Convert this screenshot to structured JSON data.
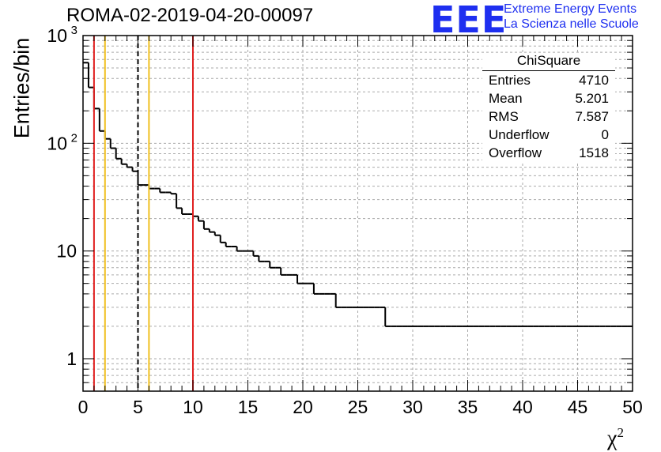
{
  "header": {
    "title": "ROMA-02-2019-04-20-00097",
    "logo_text": "EEE",
    "logo_line1": "Extreme Energy Events",
    "logo_line2": "La Scienza nelle Scuole"
  },
  "stats_box": {
    "title": "ChiSquare",
    "rows": [
      {
        "label": "Entries",
        "value": "4710"
      },
      {
        "label": "Mean",
        "value": "5.201"
      },
      {
        "label": "RMS",
        "value": "7.587"
      },
      {
        "label": "Underflow",
        "value": "0"
      },
      {
        "label": "Overflow",
        "value": "1518"
      }
    ]
  },
  "chart_data": {
    "type": "bar",
    "style": "step-histogram",
    "title": "ROMA-02-2019-04-20-00097",
    "xlabel": "χ",
    "xlabel_superscript": "2",
    "ylabel": "Entries/bin",
    "xlim": [
      0,
      50
    ],
    "ylim": [
      0.5,
      1000
    ],
    "yscale": "log",
    "grid": true,
    "bin_width": 0.5,
    "x_ticks": [
      "0",
      "5",
      "10",
      "15",
      "20",
      "25",
      "30",
      "35",
      "40",
      "45",
      "50"
    ],
    "y_ticks": [
      {
        "value": 1,
        "label": "1"
      },
      {
        "value": 10,
        "label": "10"
      },
      {
        "value": 100,
        "label": "10",
        "exponent": "2"
      },
      {
        "value": 1000,
        "label": "10",
        "exponent": "3"
      }
    ],
    "values": [
      560,
      330,
      210,
      130,
      110,
      90,
      72,
      64,
      60,
      55,
      41,
      41,
      38,
      38,
      35,
      35,
      34,
      25,
      22,
      22,
      21,
      19,
      16,
      15,
      14,
      12,
      11,
      11,
      10,
      10,
      10,
      9,
      8,
      8,
      7,
      7,
      6,
      6,
      6,
      5,
      5,
      5,
      4,
      4,
      4,
      4,
      3,
      3,
      3,
      3,
      3,
      3,
      3,
      3,
      3,
      2,
      2,
      2,
      2,
      2,
      2,
      2,
      2,
      2,
      2,
      2,
      2,
      2,
      2,
      2,
      2,
      2,
      2,
      2,
      2,
      2,
      2,
      2,
      2,
      2,
      2,
      2,
      2,
      2,
      2,
      2,
      2,
      2,
      2,
      2,
      2,
      2,
      2,
      2,
      2,
      2,
      2,
      2,
      2,
      2
    ],
    "reference_lines": [
      {
        "x": 1,
        "color": "#e02020",
        "style": "solid"
      },
      {
        "x": 2,
        "color": "#f0c020",
        "style": "solid"
      },
      {
        "x": 5,
        "color": "#000000",
        "style": "dashed"
      },
      {
        "x": 6,
        "color": "#f0c020",
        "style": "solid"
      },
      {
        "x": 10,
        "color": "#e02020",
        "style": "solid"
      }
    ]
  }
}
